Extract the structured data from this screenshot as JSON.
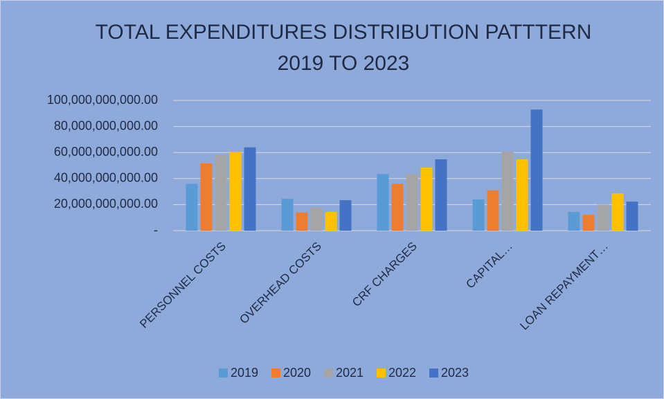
{
  "chart_data": {
    "type": "bar",
    "title": [
      "TOTAL EXPENDITURES DISTRIBUTION PATTTERN",
      "2019 TO 2023"
    ],
    "categories": [
      "PERSONNEL COSTS",
      "OVERHEAD COSTS",
      "CRF CHARGES",
      "CAPITAL…",
      "LOAN REPAYMENT…"
    ],
    "series": [
      {
        "name": "2019",
        "color": "#5b9bd5",
        "values": [
          36000000000,
          24500000000,
          43600000000,
          24000000000,
          14400000000
        ]
      },
      {
        "name": "2020",
        "color": "#ed7d31",
        "values": [
          51600000000,
          14000000000,
          36000000000,
          31000000000,
          12200000000
        ]
      },
      {
        "name": "2021",
        "color": "#a5a5a5",
        "values": [
          58000000000,
          18000000000,
          43600000000,
          60600000000,
          20000000000
        ]
      },
      {
        "name": "2022",
        "color": "#ffc000",
        "values": [
          60600000000,
          14400000000,
          48400000000,
          54800000000,
          28700000000
        ]
      },
      {
        "name": "2023",
        "color": "#4472c4",
        "values": [
          64000000000,
          23400000000,
          54800000000,
          93000000000,
          22300000000
        ]
      }
    ],
    "ylim": [
      0,
      100000000000
    ],
    "yticks": [
      {
        "value": 0,
        "label": "-"
      },
      {
        "value": 20000000000,
        "label": "20,000,000,000.00"
      },
      {
        "value": 40000000000,
        "label": "40,000,000,000.00"
      },
      {
        "value": 60000000000,
        "label": "60,000,000,000.00"
      },
      {
        "value": 80000000000,
        "label": "80,000,000,000.00"
      },
      {
        "value": 100000000000,
        "label": "100,000,000,000.00"
      }
    ],
    "grid": true,
    "legend": "bottom"
  }
}
